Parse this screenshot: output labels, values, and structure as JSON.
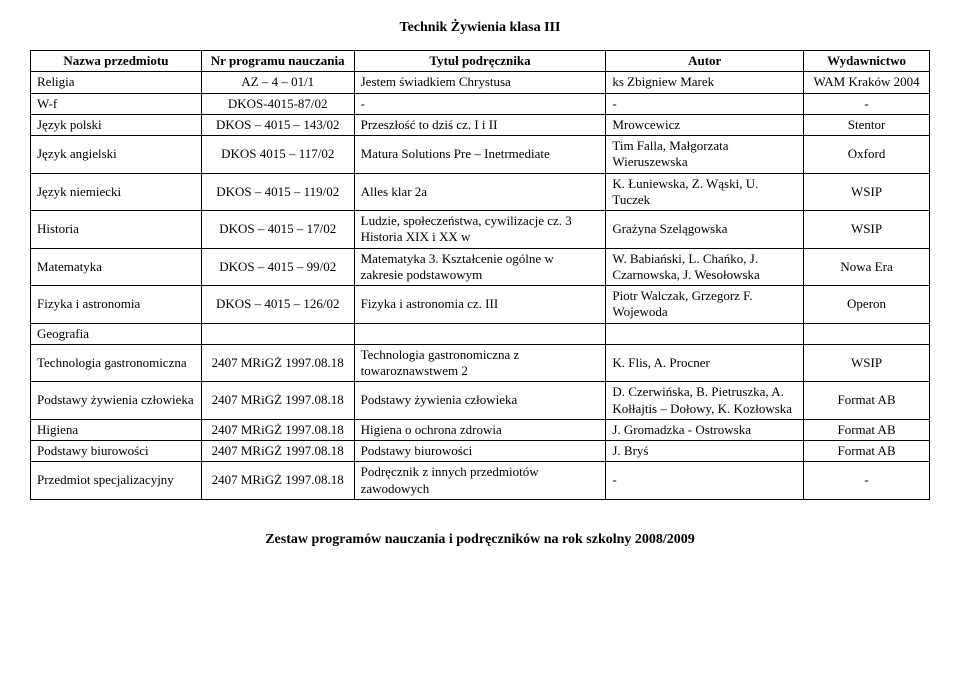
{
  "document": {
    "title": "Technik Żywienia   klasa III",
    "footer": "Zestaw programów nauczania i podręczników na rok szkolny 2008/2009"
  },
  "table": {
    "headers": {
      "subject": "Nazwa przedmiotu",
      "program": "Nr programu nauczania",
      "book_title": "Tytuł podręcznika",
      "author": "Autor",
      "publisher": "Wydawnictwo"
    },
    "rows": [
      {
        "subject": "Religia",
        "program": "AZ – 4 – 01/1",
        "book_title": "Jestem świadkiem Chrystusa",
        "author": "ks Zbigniew Marek",
        "publisher": "WAM Kraków 2004"
      },
      {
        "subject": "W-f",
        "program": "DKOS-4015-87/02",
        "book_title": "-",
        "author": "-",
        "publisher": "-"
      },
      {
        "subject": "Język polski",
        "program": "DKOS – 4015 – 143/02",
        "book_title": "Przeszłość to dziś cz. I i II",
        "author": "Mrowcewicz",
        "publisher": "Stentor"
      },
      {
        "subject": "Język angielski",
        "program": "DKOS 4015 – 117/02",
        "book_title": "Matura Solutions Pre – Inetrmediate",
        "author": "Tim Falla, Małgorzata Wieruszewska",
        "publisher": "Oxford"
      },
      {
        "subject": "Język niemiecki",
        "program": "DKOS – 4015 – 119/02",
        "book_title": "Alles klar 2a",
        "author": "K. Łuniewska, Z. Wąski, U. Tuczek",
        "publisher": "WSIP"
      },
      {
        "subject": "Historia",
        "program": "DKOS – 4015 – 17/02",
        "book_title": "Ludzie, społeczeństwa, cywilizacje cz. 3 Historia XIX i XX w",
        "author": "Grażyna Szelągowska",
        "publisher": "WSIP"
      },
      {
        "subject": "Matematyka",
        "program": "DKOS – 4015 – 99/02",
        "book_title": "Matematyka 3. Kształcenie ogólne w zakresie podstawowym",
        "author": "W. Babiański, L. Chańko, J. Czarnowska, J. Wesołowska",
        "publisher": "Nowa Era"
      },
      {
        "subject": "Fizyka i astronomia",
        "program": "DKOS – 4015 – 126/02",
        "book_title": "Fizyka i astronomia cz. III",
        "author": "Piotr Walczak, Grzegorz F. Wojewoda",
        "publisher": "Operon"
      },
      {
        "subject": "Geografia",
        "program": "",
        "book_title": "",
        "author": "",
        "publisher": ""
      },
      {
        "subject": "Technologia gastronomiczna",
        "program": "2407 MRiGŻ 1997.08.18",
        "book_title": "Technologia gastronomiczna z towaroznawstwem 2",
        "author": "K. Flis, A. Procner",
        "publisher": "WSIP"
      },
      {
        "subject": "Podstawy żywienia człowieka",
        "program": "2407 MRiGŻ 1997.08.18",
        "book_title": "Podstawy żywienia człowieka",
        "author": "D. Czerwińska, B. Pietruszka, A. Kołłajtis – Dołowy, K. Kozłowska",
        "publisher": "Format AB"
      },
      {
        "subject": "Higiena",
        "program": "2407 MRiGŻ 1997.08.18",
        "book_title": "Higiena o ochrona zdrowia",
        "author": "J. Gromadzka - Ostrowska",
        "publisher": "Format AB"
      },
      {
        "subject": "Podstawy biurowości",
        "program": "2407 MRiGŻ 1997.08.18",
        "book_title": "Podstawy biurowości",
        "author": "J. Bryś",
        "publisher": "Format AB"
      },
      {
        "subject": "Przedmiot specjalizacyjny",
        "program": "2407 MRiGŻ 1997.08.18",
        "book_title": "Podręcznik z innych przedmiotów zawodowych",
        "author": "-",
        "publisher": "-"
      }
    ]
  }
}
